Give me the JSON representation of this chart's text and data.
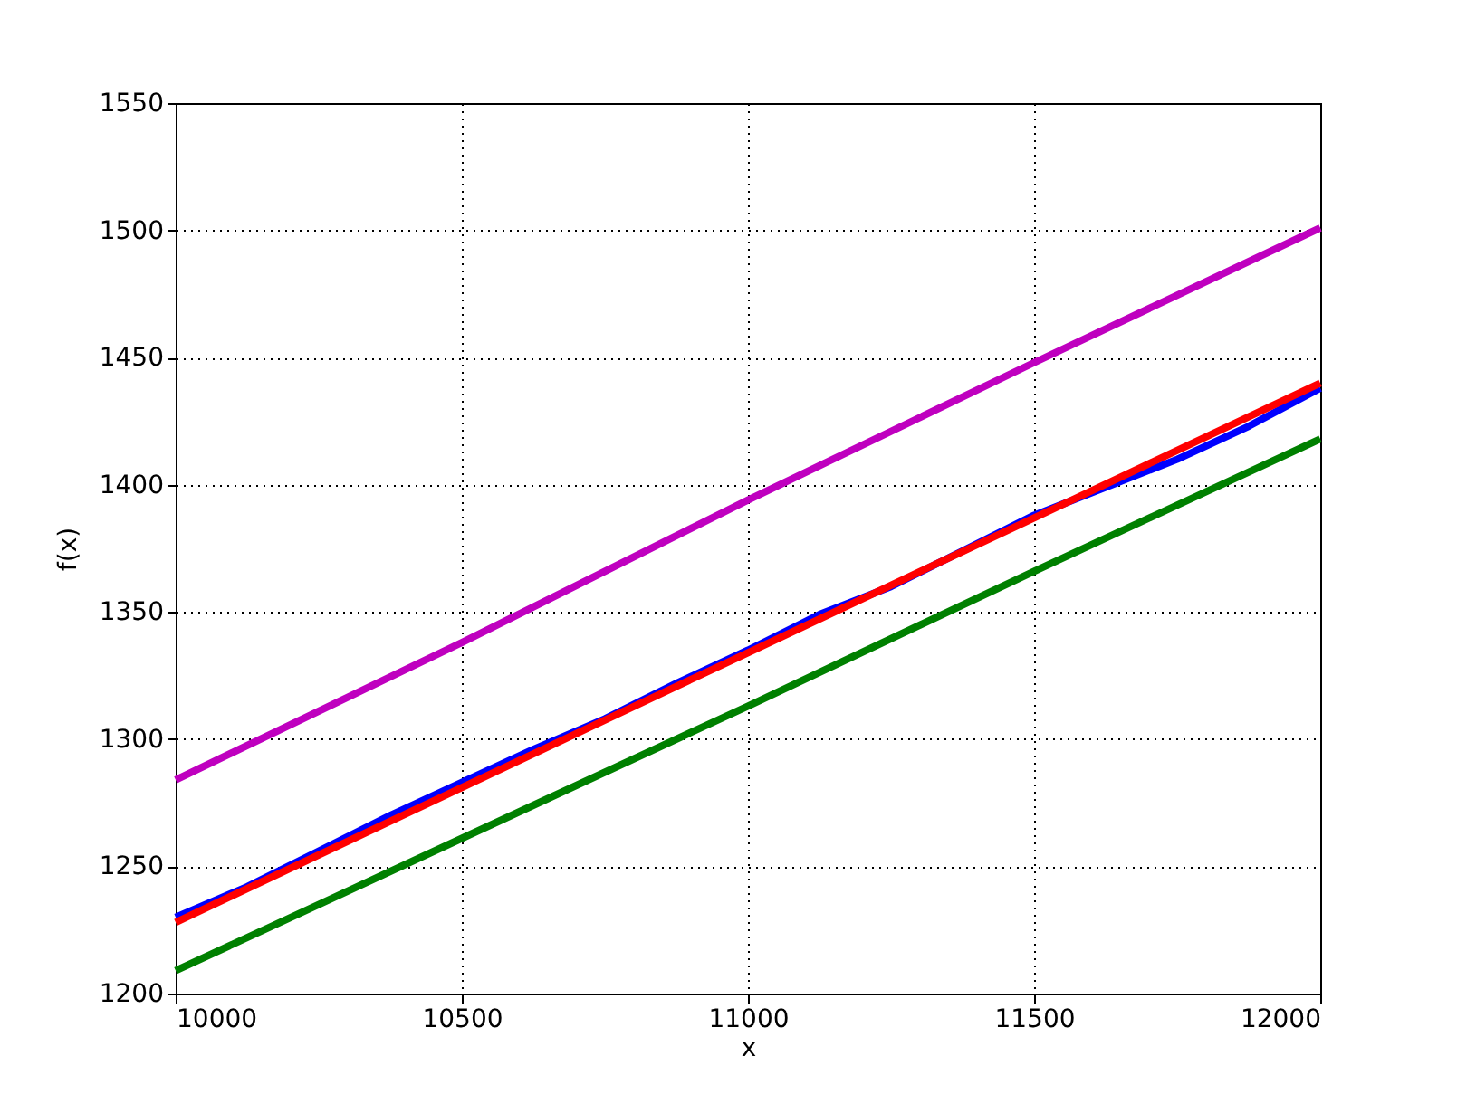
{
  "chart_data": {
    "type": "line",
    "xlabel": "x",
    "ylabel": "f(x)",
    "xlim": [
      10000,
      12000
    ],
    "xticks": [
      10000,
      10500,
      11000,
      11500,
      12000
    ],
    "ylim": [
      1200,
      1550
    ],
    "yticks": [
      1200,
      1250,
      1300,
      1350,
      1400,
      1450,
      1500,
      1550
    ],
    "grid": true,
    "marker": "none",
    "line_style": "solid",
    "series": [
      {
        "color": "#bf00bf",
        "x": [
          10000,
          10500,
          11000,
          11500,
          12000
        ],
        "values": [
          1284,
          1338,
          1394,
          1448,
          1501
        ]
      },
      {
        "color": "#008000",
        "x": [
          10000,
          10500,
          11000,
          11500,
          12000
        ],
        "values": [
          1209,
          1261,
          1313,
          1366,
          1418
        ]
      },
      {
        "color": "#0000ff",
        "x": [
          10000,
          10125,
          10250,
          10375,
          10500,
          10625,
          10750,
          10875,
          11000,
          11125,
          11250,
          11375,
          11500,
          11625,
          11750,
          11875,
          12000
        ],
        "values": [
          1230,
          1242,
          1256,
          1270,
          1283,
          1296,
          1308,
          1322,
          1335,
          1349,
          1360,
          1374,
          1388,
          1399,
          1410,
          1423,
          1438
        ]
      },
      {
        "color": "#ff0000",
        "x": [
          10000,
          10500,
          11000,
          11500,
          12000
        ],
        "values": [
          1228,
          1281,
          1334,
          1387,
          1440
        ]
      }
    ]
  }
}
